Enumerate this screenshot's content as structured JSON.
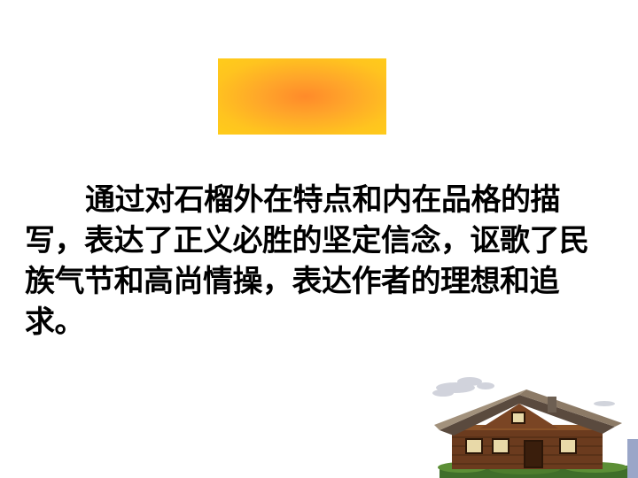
{
  "slide": {
    "paragraph": "通过对石榴外在特点和内在品格的描写，表达了正义必胜的坚定信念，讴歌了民族气节和高尚情操，表达作者的理想和追求。"
  },
  "decorations": {
    "gradient_colors": [
      "#ff8a2a",
      "#ffc41f"
    ],
    "image": "house-clipart"
  }
}
